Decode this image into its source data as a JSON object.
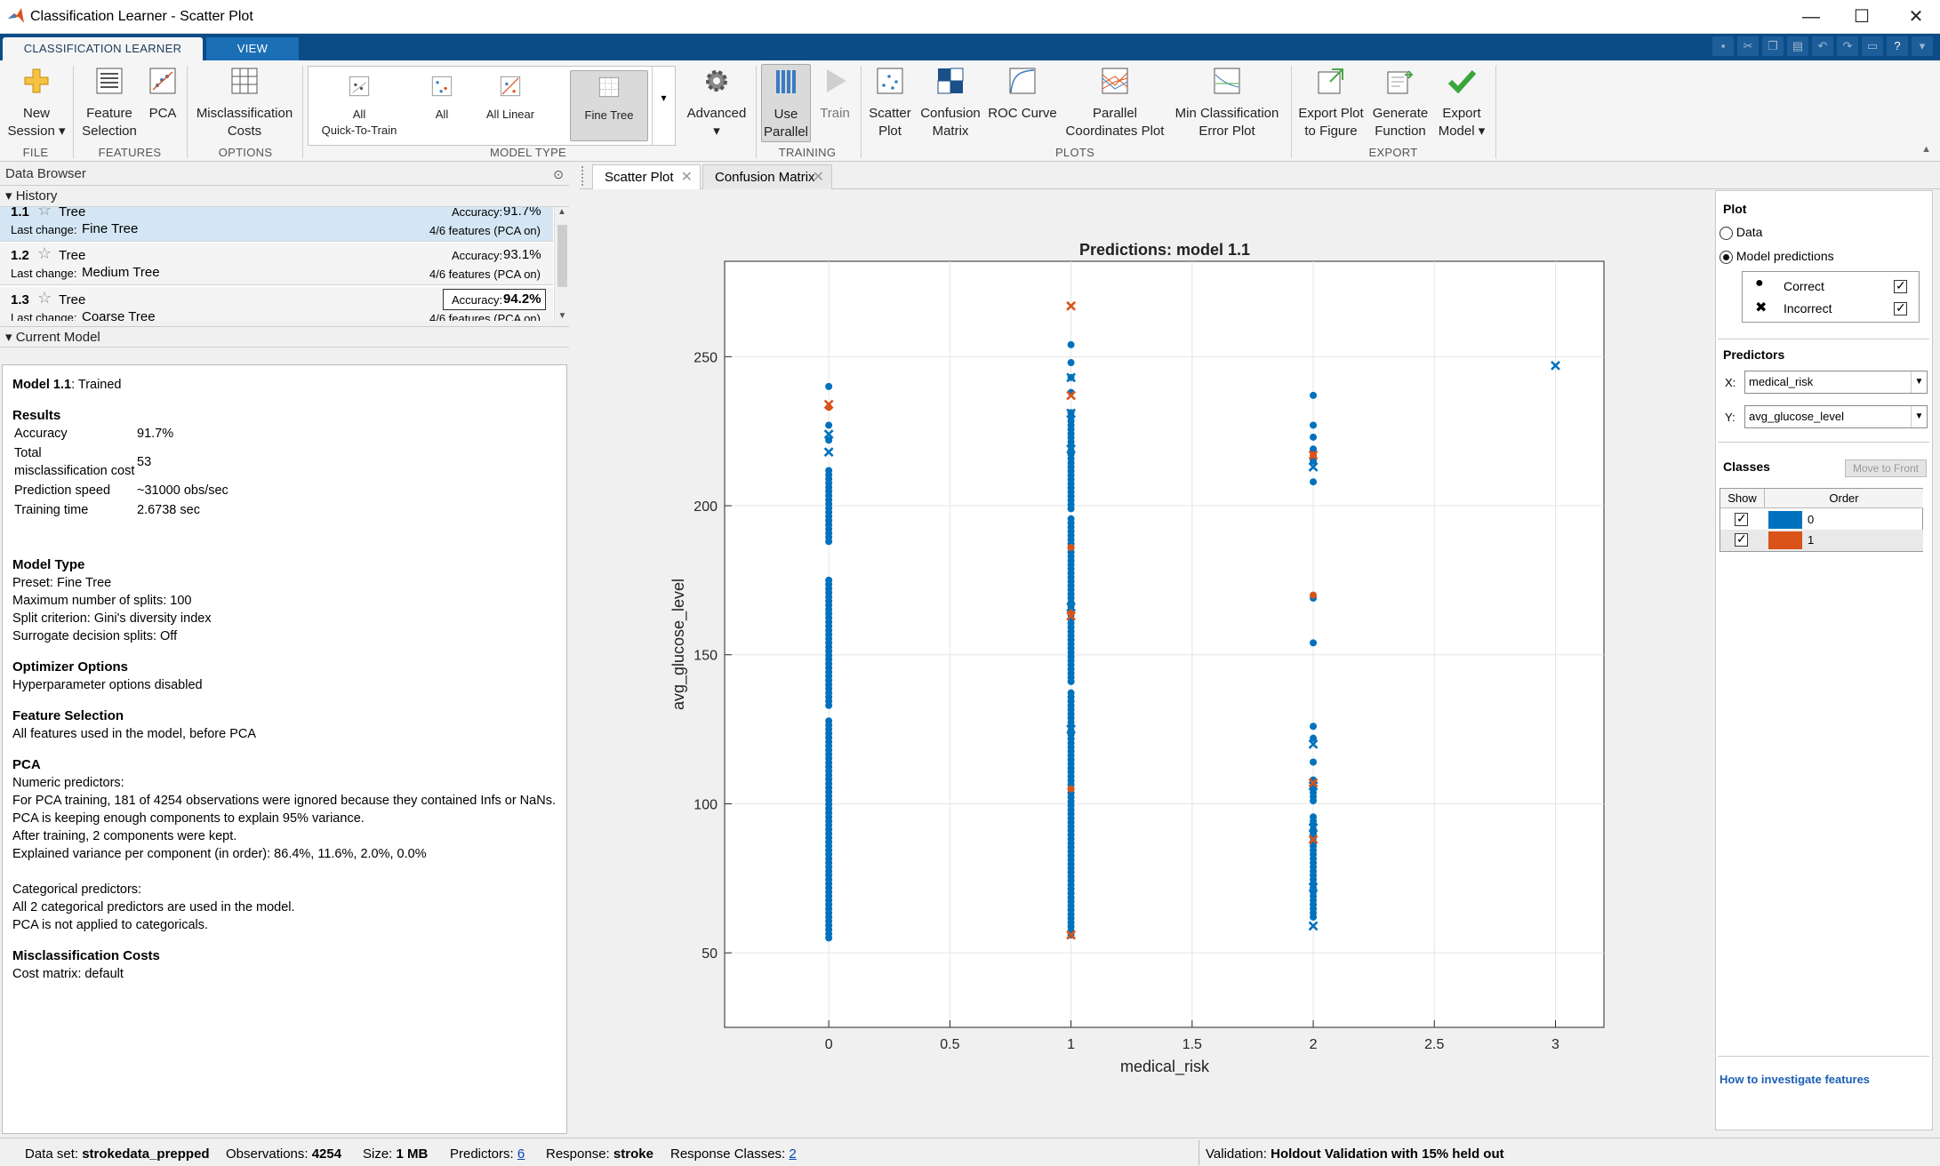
{
  "window": {
    "title": "Classification Learner - Scatter Plot"
  },
  "ribbon_tabs": [
    "CLASSIFICATION LEARNER",
    "VIEW"
  ],
  "ribbon": {
    "new_session": [
      "New",
      "Session"
    ],
    "feature_selection": [
      "Feature",
      "Selection"
    ],
    "pca": "PCA",
    "misclassification_costs": [
      "Misclassification",
      "Costs"
    ],
    "gallery": {
      "all_quick": [
        "All",
        "Quick-To-Train"
      ],
      "all": "All",
      "all_linear": "All Linear",
      "fine_tree": "Fine Tree"
    },
    "advanced": "Advanced",
    "use_parallel": [
      "Use",
      "Parallel"
    ],
    "train": "Train",
    "scatter_plot": [
      "Scatter",
      "Plot"
    ],
    "confusion_matrix": [
      "Confusion",
      "Matrix"
    ],
    "roc_curve": "ROC Curve",
    "parallel_coords": [
      "Parallel",
      "Coordinates Plot"
    ],
    "min_class_error": [
      "Min Classification",
      "Error Plot"
    ],
    "export_plot": [
      "Export Plot",
      "to Figure"
    ],
    "generate_function": [
      "Generate",
      "Function"
    ],
    "export_model": [
      "Export",
      "Model"
    ],
    "groups": {
      "file": "FILE",
      "features": "FEATURES",
      "options": "OPTIONS",
      "model_type": "MODEL TYPE",
      "training": "TRAINING",
      "plots": "PLOTS",
      "export": "EXPORT"
    }
  },
  "data_browser": {
    "title": "Data Browser",
    "history_label": "History",
    "current_model_label": "Current Model",
    "history": [
      {
        "num": "1.1",
        "name": "Tree",
        "last_change_label": "Last change:",
        "last_change": "Fine Tree",
        "acc_label": "Accuracy:",
        "accuracy": "91.7%",
        "features": "4/6 features (PCA on)"
      },
      {
        "num": "1.2",
        "name": "Tree",
        "last_change_label": "Last change:",
        "last_change": "Medium Tree",
        "acc_label": "Accuracy:",
        "accuracy": "93.1%",
        "features": "4/6 features (PCA on)"
      },
      {
        "num": "1.3",
        "name": "Tree",
        "last_change_label": "Last change:",
        "last_change": "Coarse Tree",
        "acc_label": "Accuracy:",
        "accuracy": "94.2%",
        "features": "4/6 features (PCA on)"
      }
    ]
  },
  "model": {
    "name": "Model 1.1",
    "status": ": Trained",
    "results_title": "Results",
    "results": [
      [
        "Accuracy",
        "91.7%"
      ],
      [
        "Total misclassification cost",
        "53"
      ],
      [
        "Prediction speed",
        "~31000 obs/sec"
      ],
      [
        "Training time",
        "2.6738 sec"
      ]
    ],
    "model_type_title": "Model Type",
    "model_type": [
      "Preset: Fine Tree",
      "Maximum number of splits: 100",
      "Split criterion: Gini's diversity index",
      "Surrogate decision splits: Off"
    ],
    "optimizer_title": "Optimizer Options",
    "optimizer": [
      "Hyperparameter options disabled"
    ],
    "feature_sel_title": "Feature Selection",
    "feature_sel": [
      "All features used in the model, before PCA"
    ],
    "pca_title": "PCA",
    "pca": [
      "Numeric predictors:",
      "For PCA training, 181 of 4254 observations were ignored because they contained Infs or NaNs.",
      "PCA is keeping enough components to explain 95% variance.",
      "After training, 2 components were kept.",
      "Explained variance per component (in order): 86.4%, 11.6%, 2.0%, 0.0%"
    ],
    "pca_cat": [
      "Categorical predictors:",
      "All 2 categorical predictors are used in the model.",
      "PCA is not applied to categoricals."
    ],
    "misc_title": "Misclassification Costs",
    "misc": [
      "Cost matrix: default"
    ]
  },
  "doc_tabs": [
    "Scatter Plot",
    "Confusion Matrix"
  ],
  "chart_data": {
    "type": "scatter",
    "title": "Predictions: model 1.1",
    "xlabel": "medical_risk",
    "ylabel": "avg_glucose_level",
    "xlim": [
      -0.43,
      3.2
    ],
    "ylim": [
      25,
      282
    ],
    "xticks": [
      0,
      0.5,
      1,
      1.5,
      2,
      2.5,
      3
    ],
    "xtick_labels": [
      "0",
      "0.5",
      "1",
      "1.5",
      "2",
      "2.5",
      "3"
    ],
    "yticks": [
      50,
      100,
      150,
      200,
      250
    ],
    "grid": true,
    "series": [
      {
        "name": "Correct",
        "class": "0",
        "marker": "dot",
        "color": "#0072bd",
        "dense_ranges": [
          [
            0,
            55,
            128
          ],
          [
            0,
            133,
            176
          ],
          [
            0,
            188,
            212
          ],
          [
            1,
            56,
            138
          ],
          [
            1,
            141,
            196
          ],
          [
            1,
            199,
            232
          ],
          [
            2,
            62,
            96
          ],
          [
            2,
            101,
            109
          ]
        ],
        "points": [
          [
            0,
            240
          ],
          [
            0,
            227
          ],
          [
            0,
            222
          ],
          [
            1,
            254
          ],
          [
            1,
            248
          ],
          [
            1,
            243
          ],
          [
            1,
            238
          ],
          [
            2,
            237
          ],
          [
            2,
            227
          ],
          [
            2,
            223
          ],
          [
            2,
            219
          ],
          [
            2,
            215
          ],
          [
            2,
            208
          ],
          [
            2,
            169
          ],
          [
            2,
            154
          ],
          [
            2,
            126
          ],
          [
            2,
            122
          ],
          [
            2,
            114
          ]
        ]
      },
      {
        "name": "Correct",
        "class": "1",
        "marker": "dot",
        "color": "#d95319",
        "points": [
          [
            0,
            233
          ],
          [
            1,
            186
          ],
          [
            1,
            164
          ],
          [
            1,
            105
          ],
          [
            2,
            217
          ],
          [
            2,
            170
          ]
        ]
      },
      {
        "name": "Incorrect",
        "class": "0",
        "marker": "x",
        "color": "#0072bd",
        "points": [
          [
            0,
            224
          ],
          [
            0,
            218
          ],
          [
            1,
            243
          ],
          [
            1,
            231
          ],
          [
            1,
            219
          ],
          [
            1,
            166
          ],
          [
            1,
            125
          ],
          [
            2,
            213
          ],
          [
            2,
            120
          ],
          [
            2,
            106
          ],
          [
            2,
            92
          ],
          [
            2,
            72
          ],
          [
            2,
            59
          ],
          [
            3,
            247
          ]
        ]
      },
      {
        "name": "Incorrect",
        "class": "1",
        "marker": "x",
        "color": "#d95319",
        "points": [
          [
            0,
            234
          ],
          [
            1,
            267
          ],
          [
            1,
            237
          ],
          [
            1,
            163
          ],
          [
            1,
            56
          ],
          [
            2,
            217
          ],
          [
            2,
            107
          ],
          [
            2,
            88
          ]
        ]
      }
    ]
  },
  "controls": {
    "plot_title": "Plot",
    "data_option": "Data",
    "model_predictions_option": "Model predictions",
    "correct_label": "Correct",
    "incorrect_label": "Incorrect",
    "predictors_title": "Predictors",
    "x_label": "X:",
    "y_label": "Y:",
    "x_value": "medical_risk",
    "y_value": "avg_glucose_level",
    "classes_title": "Classes",
    "move_to_front": "Move to Front",
    "col_show": "Show",
    "col_order": "Order",
    "classes": [
      {
        "label": "0",
        "color": "#0072bd"
      },
      {
        "label": "1",
        "color": "#d95319"
      }
    ],
    "help_link": "How to investigate features"
  },
  "status": {
    "dataset_label": "Data set:",
    "dataset": "strokedata_prepped",
    "obs_label": "Observations:",
    "obs": "4254",
    "size_label": "Size:",
    "size": "1 MB",
    "pred_label": "Predictors:",
    "pred": "6",
    "resp_label": "Response:",
    "resp": "stroke",
    "rc_label": "Response Classes:",
    "rc": "2",
    "val_label": "Validation:",
    "val": "Holdout Validation with 15% held out"
  }
}
